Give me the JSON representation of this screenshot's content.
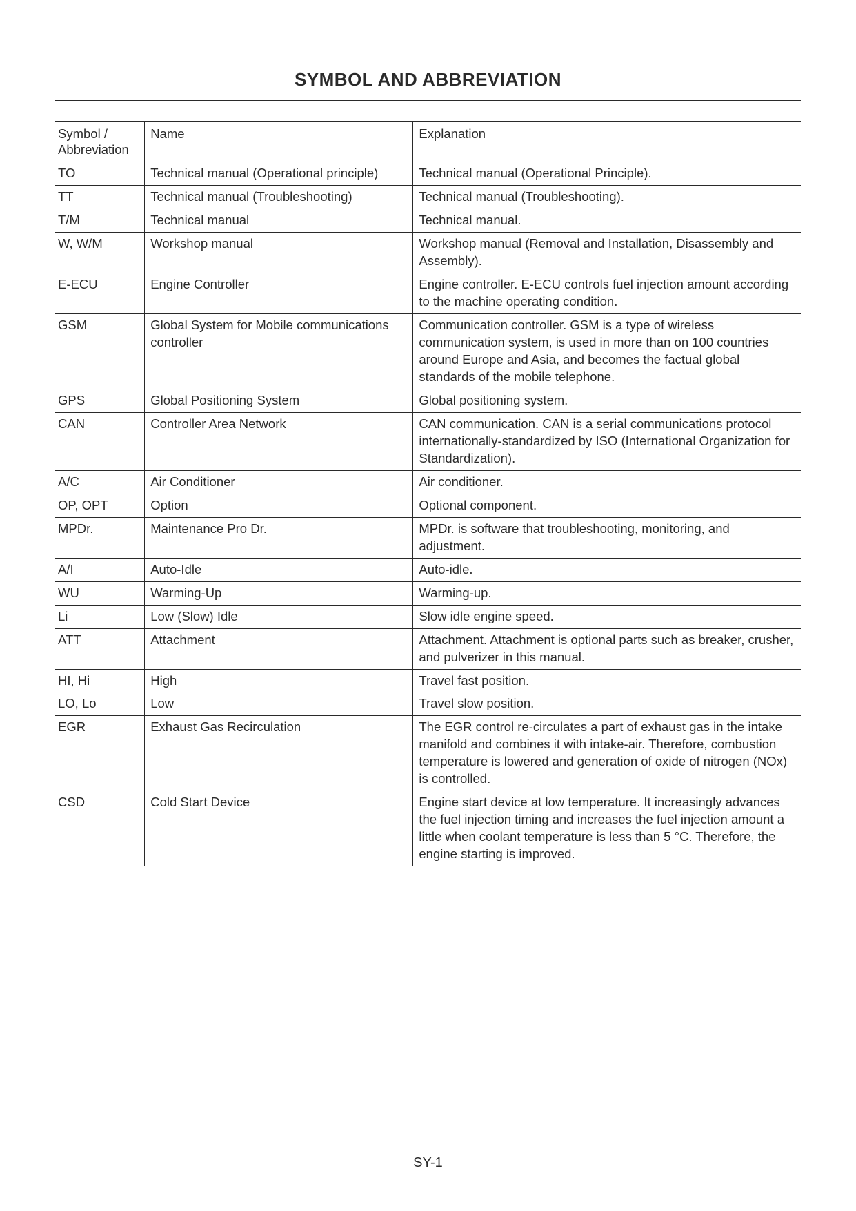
{
  "title": "SYMBOL AND ABBREVIATION",
  "footer": "SY-1",
  "table": {
    "columns": [
      "Symbol / Abbreviation",
      "Name",
      "Explanation"
    ],
    "rows": [
      {
        "symbol": "TO",
        "name": "Technical manual (Operational principle)",
        "explanation": "Technical manual (Operational Principle)."
      },
      {
        "symbol": "TT",
        "name": "Technical manual (Troubleshooting)",
        "explanation": "Technical manual (Troubleshooting)."
      },
      {
        "symbol": "T/M",
        "name": "Technical manual",
        "explanation": "Technical manual."
      },
      {
        "symbol": "W, W/M",
        "name": "Workshop manual",
        "explanation": "Workshop manual (Removal and Installation, Disassembly and Assembly)."
      },
      {
        "symbol": "E-ECU",
        "name": "Engine Controller",
        "explanation": "Engine controller. E-ECU controls fuel injection amount according to the machine operating condition."
      },
      {
        "symbol": "GSM",
        "name": "Global System for Mobile communications controller",
        "explanation": "Communication controller. GSM is a type of wireless communication system, is used in more than on 100 countries around Europe and Asia, and becomes the factual global standards of the mobile telephone."
      },
      {
        "symbol": "GPS",
        "name": "Global Positioning System",
        "explanation": "Global positioning system."
      },
      {
        "symbol": "CAN",
        "name": "Controller Area Network",
        "explanation": "CAN communication. CAN is a serial communications protocol internationally-standardized by ISO (International Organization for Standardization)."
      },
      {
        "symbol": "A/C",
        "name": "Air Conditioner",
        "explanation": "Air conditioner."
      },
      {
        "symbol": "OP, OPT",
        "name": "Option",
        "explanation": "Optional component."
      },
      {
        "symbol": "MPDr.",
        "name": "Maintenance Pro Dr.",
        "explanation": "MPDr. is software that troubleshooting, monitoring, and adjustment."
      },
      {
        "symbol": "A/I",
        "name": "Auto-Idle",
        "explanation": "Auto-idle."
      },
      {
        "symbol": "WU",
        "name": "Warming-Up",
        "explanation": "Warming-up."
      },
      {
        "symbol": "Li",
        "name": "Low (Slow) Idle",
        "explanation": "Slow idle engine speed."
      },
      {
        "symbol": "ATT",
        "name": "Attachment",
        "explanation": "Attachment. Attachment is optional parts such as breaker, crusher, and pulverizer in this manual."
      },
      {
        "symbol": "HI, Hi",
        "name": "High",
        "explanation": "Travel fast position."
      },
      {
        "symbol": "LO, Lo",
        "name": "Low",
        "explanation": "Travel slow position."
      },
      {
        "symbol": "EGR",
        "name": "Exhaust Gas Recirculation",
        "explanation": "The EGR control re-circulates a part of exhaust gas in the intake manifold and combines it with intake-air. Therefore, combustion temperature is lowered and generation of oxide of nitrogen (NOx) is controlled."
      },
      {
        "symbol": "CSD",
        "name": "Cold Start Device",
        "explanation": "Engine start device at low temperature. It increasingly advances the fuel injection timing and increases the fuel injection amount a little when coolant temperature is less than 5 °C. Therefore, the engine starting is improved."
      }
    ]
  }
}
